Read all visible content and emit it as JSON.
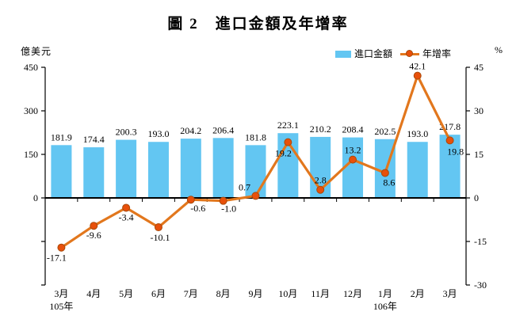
{
  "title": "圖 2　進口金額及年增率",
  "axes": {
    "left_unit": "億美元",
    "right_unit": "%"
  },
  "legend": {
    "items": [
      {
        "label": "進口金額",
        "swatch": "bar"
      },
      {
        "label": "年增率",
        "swatch": "line-marker"
      }
    ]
  },
  "colors": {
    "bar": "#63C6F2",
    "line": "#E2771D",
    "marker_fill": "#E8500A",
    "marker_stroke": "#A8490A",
    "axis": "#000000",
    "text": "#000000"
  },
  "chart_data": {
    "type": "bar+line",
    "title": "圖 2　進口金額及年增率",
    "categories": [
      "3月",
      "4月",
      "5月",
      "6月",
      "7月",
      "8月",
      "9月",
      "10月",
      "11月",
      "12月",
      "1月",
      "2月",
      "3月"
    ],
    "year_notes": [
      {
        "index": 0,
        "label": "105年"
      },
      {
        "index": 10,
        "label": "106年"
      }
    ],
    "series": [
      {
        "name": "進口金額",
        "type": "bar",
        "axis": "left",
        "values": [
          181.9,
          174.4,
          200.3,
          193.0,
          204.2,
          206.4,
          181.8,
          223.1,
          210.2,
          208.4,
          202.5,
          193.0,
          217.8
        ]
      },
      {
        "name": "年增率",
        "type": "line",
        "axis": "right",
        "values": [
          -17.1,
          -9.6,
          -3.4,
          -10.1,
          -0.6,
          -1.0,
          0.7,
          19.2,
          2.8,
          13.2,
          8.6,
          42.1,
          19.8
        ],
        "label_offsets": [
          [
            -6,
            17
          ],
          [
            0,
            16
          ],
          [
            0,
            16
          ],
          [
            2,
            17
          ],
          [
            9,
            15
          ],
          [
            7,
            14
          ],
          [
            -14,
            -7
          ],
          [
            -6,
            18
          ],
          [
            0,
            -8
          ],
          [
            0,
            -8
          ],
          [
            5,
            16
          ],
          [
            0,
            -8
          ],
          [
            7,
            18
          ]
        ]
      }
    ],
    "left_axis": {
      "label": "億美元",
      "ticks": [
        450,
        300,
        150,
        0
      ],
      "min": -300,
      "max": 450
    },
    "right_axis": {
      "label": "%",
      "ticks": [
        45,
        30,
        15,
        0,
        -15,
        -30
      ],
      "min": -30,
      "max": 45
    },
    "grid": false,
    "legend_position": "top-right"
  }
}
